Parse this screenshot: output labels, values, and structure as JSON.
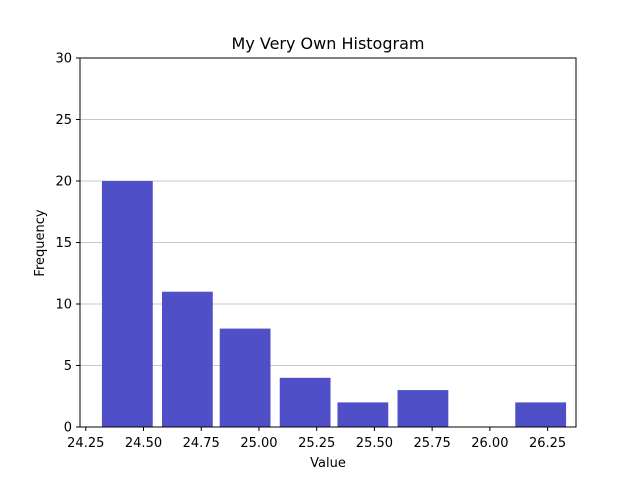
{
  "chart_data": {
    "type": "bar",
    "title": "My Very Own Histogram",
    "xlabel": "Value",
    "ylabel": "Frequency",
    "xlim": [
      24.225,
      26.373
    ],
    "ylim": [
      0,
      30
    ],
    "x_ticks": [
      24.25,
      24.5,
      24.75,
      25.0,
      25.25,
      25.5,
      25.75,
      26.0,
      26.25
    ],
    "x_tick_labels": [
      "24.25",
      "24.50",
      "24.75",
      "25.00",
      "25.25",
      "25.50",
      "25.75",
      "26.00",
      "26.25"
    ],
    "y_ticks": [
      0,
      5,
      10,
      15,
      20,
      25,
      30
    ],
    "y_tick_labels": [
      "0",
      "5",
      "10",
      "15",
      "20",
      "25",
      "30"
    ],
    "bins": [
      [
        24.32,
        24.54
      ],
      [
        24.58,
        24.8
      ],
      [
        24.83,
        25.05
      ],
      [
        25.09,
        25.31
      ],
      [
        25.34,
        25.56
      ],
      [
        25.6,
        25.82
      ],
      [
        25.86,
        26.08
      ],
      [
        26.11,
        26.33
      ]
    ],
    "values": [
      20,
      11,
      8,
      4,
      2,
      3,
      0,
      2
    ],
    "grid": "y",
    "bar_color": "#4f4fc8",
    "grid_color": "#c8c8c8"
  }
}
